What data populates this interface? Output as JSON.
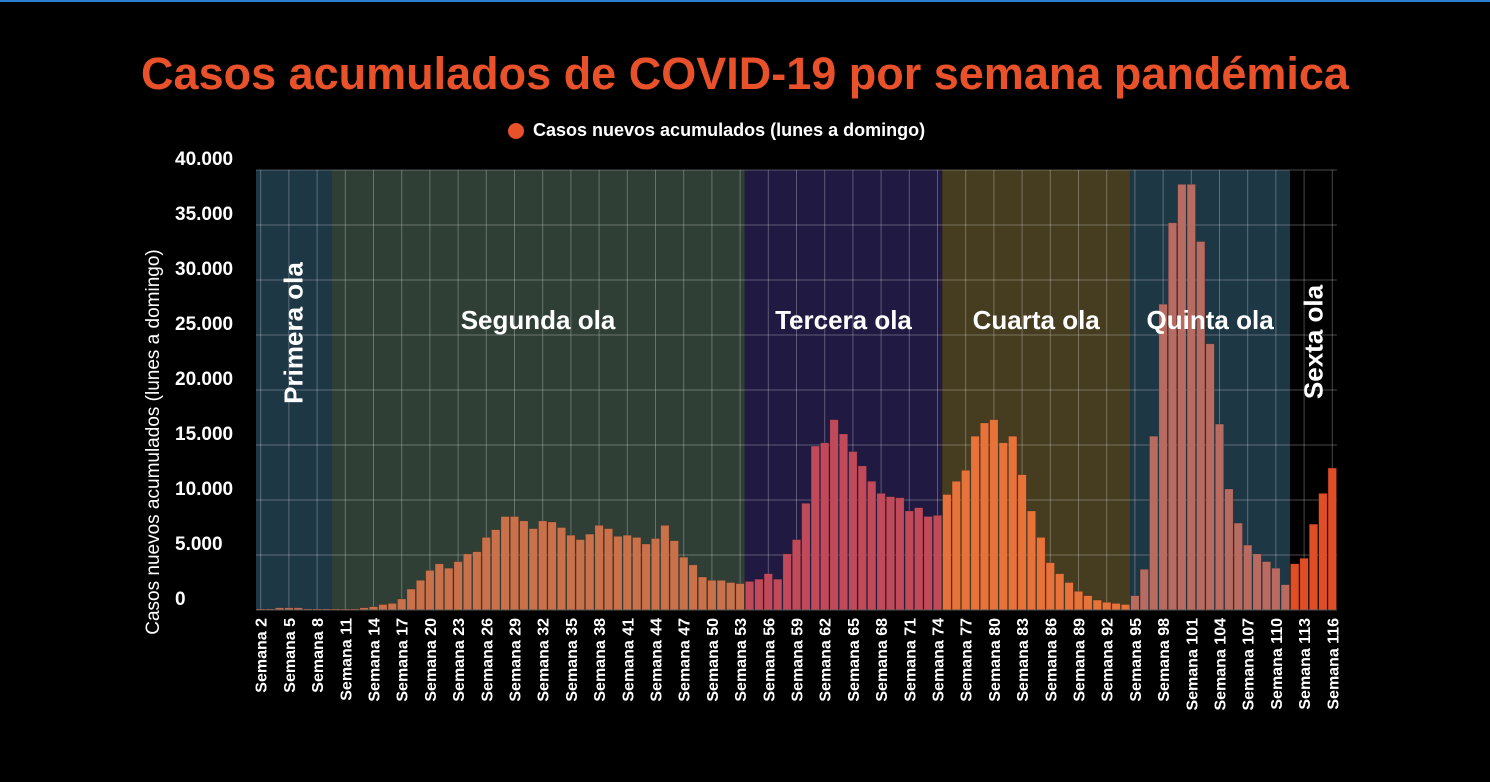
{
  "chart_data": {
    "type": "bar",
    "title": "Casos acumulados de COVID-19 por semana pandémica",
    "legend": "Casos nuevos acumulados (lunes a domingo)",
    "legend_position": "top",
    "ylabel": "Casos nuevos acumulados (lunes a domingo)",
    "xlabel": "",
    "ylim": [
      0,
      40000
    ],
    "yticks": [
      "0",
      "5.000",
      "10.000",
      "15.000",
      "20.000",
      "25.000",
      "30.000",
      "35.000",
      "40.000"
    ],
    "grid": true,
    "week_prefix": "Semana",
    "x_first_week": 2,
    "x_tick_every": 3,
    "values": [
      100,
      100,
      200,
      200,
      200,
      100,
      100,
      100,
      100,
      100,
      100,
      200,
      300,
      500,
      600,
      1000,
      1900,
      2700,
      3600,
      4200,
      3800,
      4400,
      5100,
      5300,
      6600,
      7300,
      8500,
      8500,
      8100,
      7400,
      8100,
      8000,
      7500,
      6800,
      6400,
      6900,
      7700,
      7400,
      6700,
      6800,
      6600,
      6000,
      6500,
      7700,
      6300,
      4800,
      4100,
      3000,
      2700,
      2700,
      2500,
      2400,
      2600,
      2800,
      3300,
      2800,
      5100,
      6400,
      9700,
      14900,
      15200,
      17300,
      16000,
      14400,
      13100,
      11700,
      10600,
      10300,
      10200,
      9000,
      9300,
      8500,
      8600,
      10500,
      11700,
      12700,
      15800,
      17000,
      17300,
      15200,
      15800,
      12300,
      9000,
      6600,
      4300,
      3300,
      2500,
      1700,
      1300,
      900,
      700,
      600,
      500,
      1300,
      3700,
      15800,
      27800,
      35200,
      38700,
      38700,
      33500,
      24200,
      16900,
      11000,
      7900,
      5900,
      5100,
      4400,
      3800,
      2300,
      4200,
      4700,
      7800,
      10600,
      12900
    ],
    "waves": [
      {
        "label": "Primera ola",
        "from": 2,
        "to": 9,
        "band": "#1e3745",
        "bar": "#c06d58",
        "vertical": true
      },
      {
        "label": "Segunda ola",
        "from": 10,
        "to": 53,
        "band": "#2f3f36",
        "bar": "#c8714b",
        "vertical": false
      },
      {
        "label": "Tercera ola",
        "from": 54,
        "to": 74,
        "band": "#201a42",
        "bar": "#c04a5a",
        "vertical": false
      },
      {
        "label": "Cuarta ola",
        "from": 75,
        "to": 94,
        "band": "#463c20",
        "bar": "#e8733a",
        "vertical": false
      },
      {
        "label": "Quinta ola",
        "from": 95,
        "to": 111,
        "band": "#1e3745",
        "bar": "#b86b60",
        "vertical": false
      },
      {
        "label": "Sexta ola",
        "from": 112,
        "to": 116,
        "band": "#000000",
        "bar": "#e04e26",
        "vertical": true
      }
    ],
    "title_color": "#e8512a"
  }
}
